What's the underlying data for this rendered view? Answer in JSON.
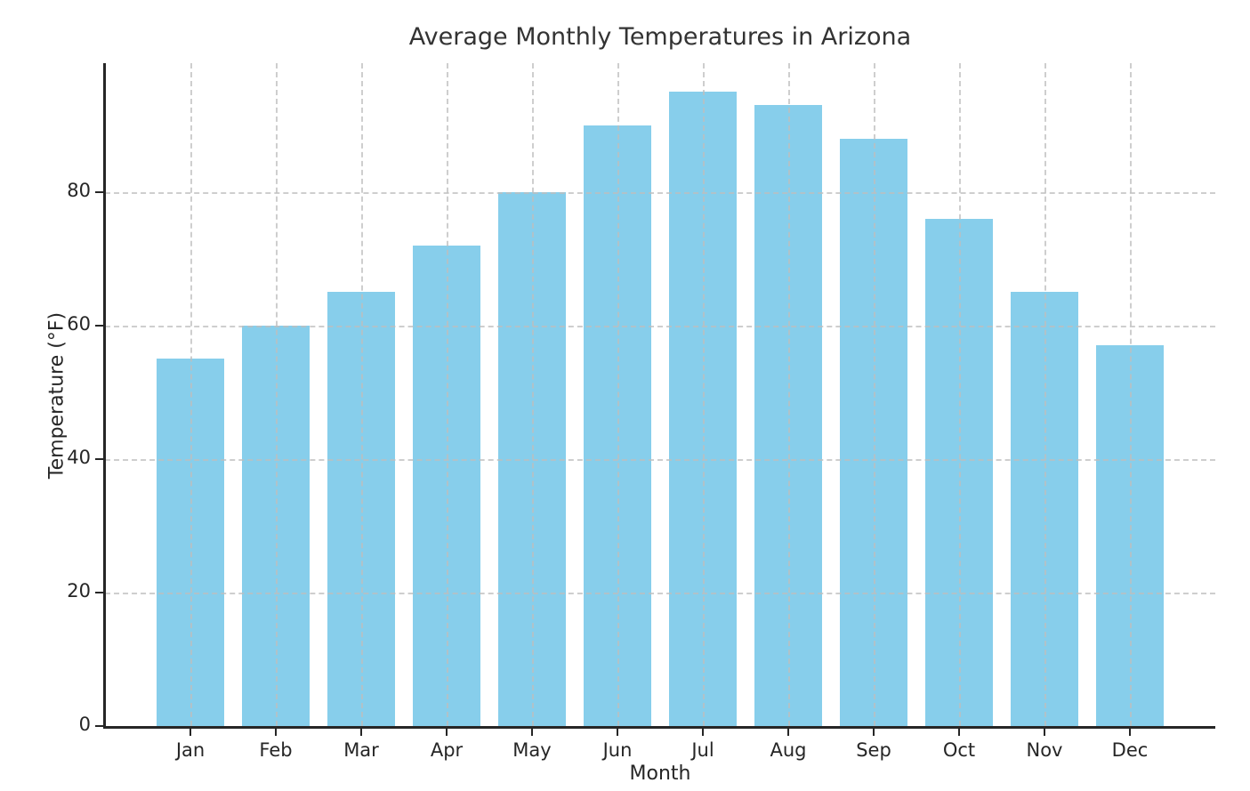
{
  "chart_data": {
    "type": "bar",
    "title": "Average Monthly Temperatures in Arizona",
    "xlabel": "Month",
    "ylabel": "Temperature (°F)",
    "categories": [
      "Jan",
      "Feb",
      "Mar",
      "Apr",
      "May",
      "Jun",
      "Jul",
      "Aug",
      "Sep",
      "Oct",
      "Nov",
      "Dec"
    ],
    "values": [
      55,
      60,
      65,
      72,
      80,
      90,
      95,
      93,
      88,
      76,
      65,
      57
    ],
    "yticks": [
      0,
      20,
      40,
      60,
      80
    ],
    "ylim": [
      0,
      99.3
    ],
    "bar_color": "#87CEEB",
    "grid": true,
    "grid_style": "dashed",
    "legend": "none",
    "axis_color": "#262626",
    "title_color": "#333333"
  }
}
